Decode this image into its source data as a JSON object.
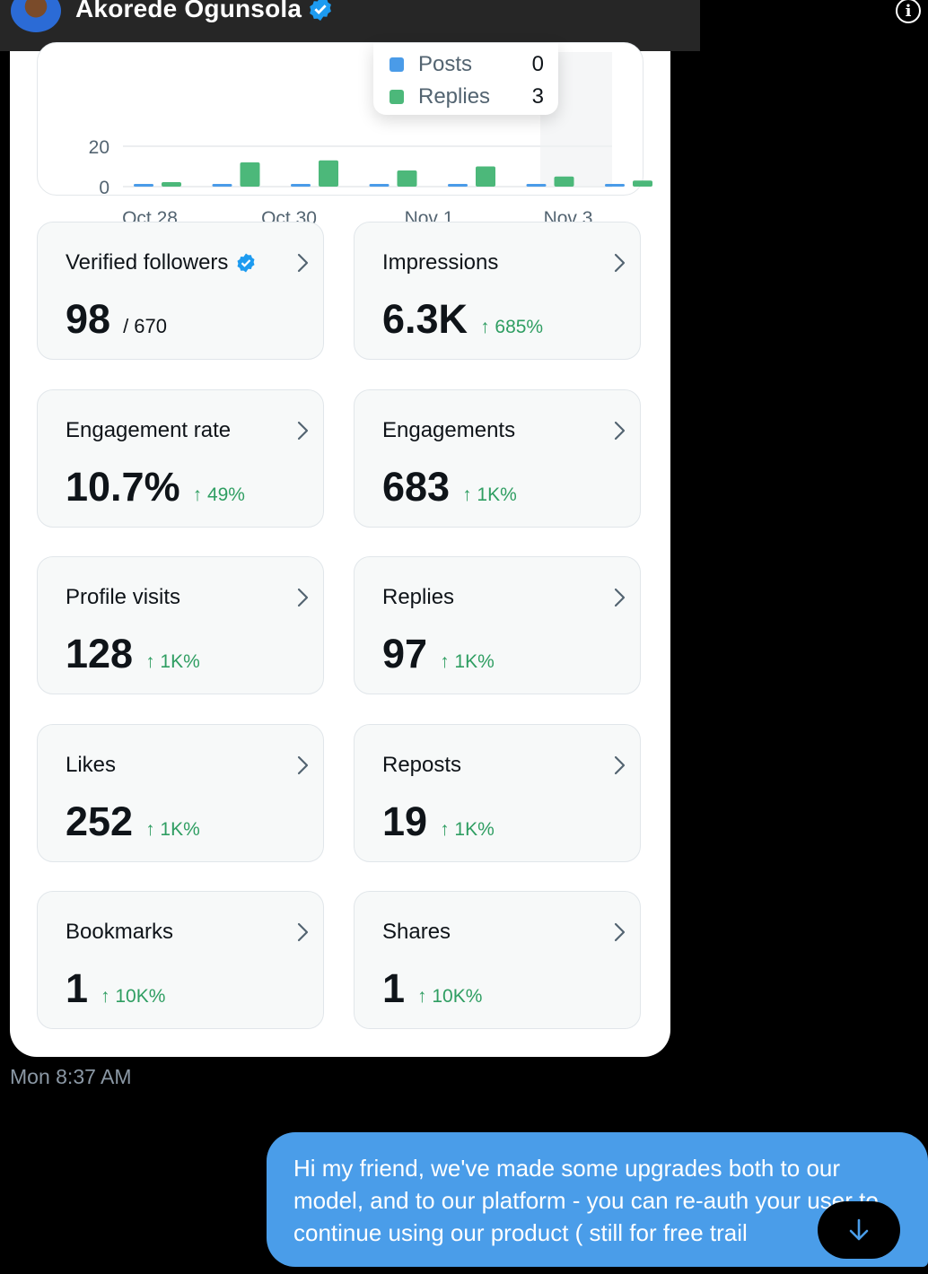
{
  "header": {
    "name": "Akorede Ogunsola",
    "avatar": "avatar-icon",
    "verified": "verified-badge-icon",
    "info": "i"
  },
  "colors": {
    "posts": "#4a9be8",
    "replies": "#4cb87a",
    "delta": "#2f9e62",
    "bubble": "#4a9de9"
  },
  "chart_data": {
    "type": "bar",
    "series": [
      {
        "name": "Posts",
        "values": [
          0,
          0,
          0,
          0,
          0,
          0,
          0
        ]
      },
      {
        "name": "Replies",
        "values": [
          2,
          12,
          13,
          8,
          10,
          5,
          3
        ]
      }
    ],
    "categories": [
      "Oct 28",
      "Oct 29",
      "Oct 30",
      "Oct 31",
      "Nov 1",
      "Nov 2",
      "Nov 3"
    ],
    "x_tick_labels": [
      "Oct 28",
      "Oct 30",
      "Nov 1",
      "Nov 3"
    ],
    "y_ticks": [
      "0",
      "20"
    ],
    "ylim": [
      0,
      20
    ],
    "tooltip": {
      "rows": [
        {
          "label": "Posts",
          "value": "0"
        },
        {
          "label": "Replies",
          "value": "3"
        }
      ]
    }
  },
  "metrics": [
    {
      "label": "Verified followers",
      "value": "98",
      "sub": "/ 670",
      "delta": "",
      "verified": true
    },
    {
      "label": "Impressions",
      "value": "6.3K",
      "sub": "",
      "delta": "↑ 685%"
    },
    {
      "label": "Engagement rate",
      "value": "10.7%",
      "sub": "",
      "delta": "↑ 49%"
    },
    {
      "label": "Engagements",
      "value": "683",
      "sub": "",
      "delta": "↑ 1K%"
    },
    {
      "label": "Profile visits",
      "value": "128",
      "sub": "",
      "delta": "↑ 1K%"
    },
    {
      "label": "Replies",
      "value": "97",
      "sub": "",
      "delta": "↑ 1K%"
    },
    {
      "label": "Likes",
      "value": "252",
      "sub": "",
      "delta": "↑ 1K%"
    },
    {
      "label": "Reposts",
      "value": "19",
      "sub": "",
      "delta": "↑ 1K%"
    },
    {
      "label": "Bookmarks",
      "value": "1",
      "sub": "",
      "delta": "↑ 10K%"
    },
    {
      "label": "Shares",
      "value": "1",
      "sub": "",
      "delta": "↑ 10K%"
    }
  ],
  "message": {
    "timestamp": "Mon 8:37 AM",
    "text": "Hi my friend, we've made some upgrades both to our model, and to our platform - you can re-auth your user to continue using our product ( still for free trail"
  }
}
